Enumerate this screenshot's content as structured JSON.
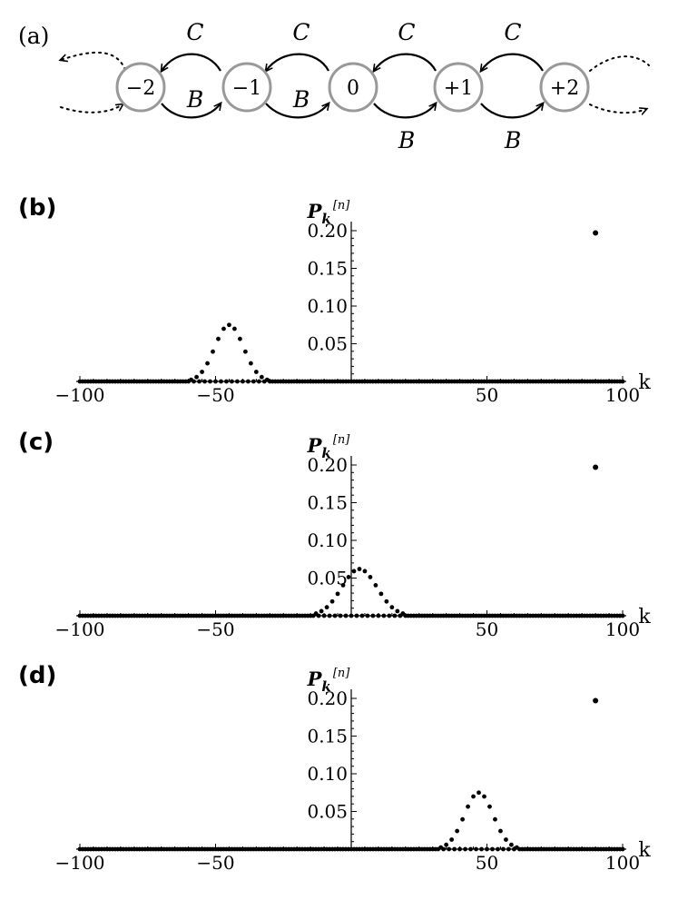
{
  "diagram": {
    "panel_label": "(a)",
    "nodes": [
      "−2",
      "−1",
      "0",
      "+1",
      "+2"
    ],
    "top_labels": [
      "C",
      "C",
      "C",
      "C"
    ],
    "bottom_labels": [
      "B",
      "B",
      "B",
      "B"
    ]
  },
  "chart_data": [
    {
      "panel": "(b)",
      "type": "scatter",
      "ylabel": "P",
      "ylabel_sub": "k",
      "ylabel_sup": "[n]",
      "xlabel": "k",
      "xlim": [
        -100,
        100
      ],
      "ylim": [
        0,
        0.2
      ],
      "xticks": [
        -100,
        -50,
        50,
        100
      ],
      "xtick_labels": [
        "−100",
        "−50",
        "50",
        "100"
      ],
      "yticks": [
        0.05,
        0.1,
        0.15,
        0.2
      ],
      "ytick_labels": [
        "0.05",
        "0.10",
        "0.15",
        "0.20"
      ],
      "peak": {
        "center": -45,
        "sigma": 5.3,
        "height": 0.075
      },
      "outlier": {
        "x": 90,
        "y": 0.197
      }
    },
    {
      "panel": "(c)",
      "type": "scatter",
      "ylabel": "P",
      "ylabel_sub": "k",
      "ylabel_sup": "[n]",
      "xlabel": "k",
      "xlim": [
        -100,
        100
      ],
      "ylim": [
        0,
        0.2
      ],
      "xticks": [
        -100,
        -50,
        50,
        100
      ],
      "xtick_labels": [
        "−100",
        "−50",
        "50",
        "100"
      ],
      "yticks": [
        0.05,
        0.1,
        0.15,
        0.2
      ],
      "ytick_labels": [
        "0.05",
        "0.10",
        "0.15",
        "0.20"
      ],
      "peak": {
        "center": 3,
        "sigma": 6.5,
        "height": 0.062
      },
      "outlier": {
        "x": 90,
        "y": 0.197
      }
    },
    {
      "panel": "(d)",
      "type": "scatter",
      "ylabel": "P",
      "ylabel_sub": "k",
      "ylabel_sup": "[n]",
      "xlabel": "k",
      "xlim": [
        -100,
        100
      ],
      "ylim": [
        0,
        0.2
      ],
      "xticks": [
        -100,
        -50,
        50,
        100
      ],
      "xtick_labels": [
        "−100",
        "−50",
        "50",
        "100"
      ],
      "yticks": [
        0.05,
        0.1,
        0.15,
        0.2
      ],
      "ytick_labels": [
        "0.05",
        "0.10",
        "0.15",
        "0.20"
      ],
      "peak": {
        "center": 47,
        "sigma": 5.3,
        "height": 0.075
      },
      "outlier": {
        "x": 90,
        "y": 0.197
      }
    }
  ]
}
